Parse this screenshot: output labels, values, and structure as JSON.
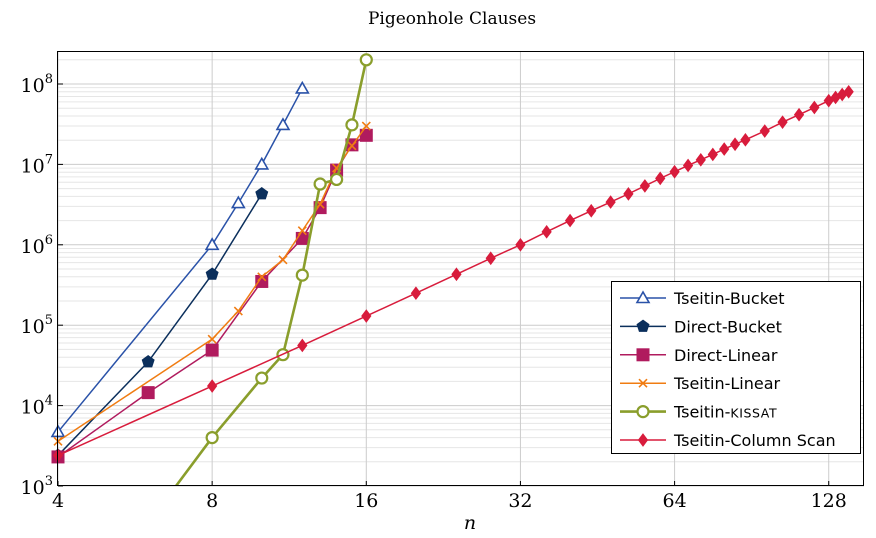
{
  "chart_data": {
    "type": "line",
    "title": "Pigeonhole Clauses",
    "xlabel": "n",
    "ylabel": "",
    "xscale": "log2",
    "yscale": "log10",
    "xlim": [
      4,
      150
    ],
    "ylim": [
      1000,
      250000000
    ],
    "xticks": [
      {
        "value": 4,
        "label": "4"
      },
      {
        "value": 8,
        "label": "8"
      },
      {
        "value": 16,
        "label": "16"
      },
      {
        "value": 32,
        "label": "32"
      },
      {
        "value": 64,
        "label": "64"
      },
      {
        "value": 128,
        "label": "128"
      }
    ],
    "yticks": [
      {
        "value": 1000,
        "base": "10",
        "exp": "3"
      },
      {
        "value": 10000,
        "base": "10",
        "exp": "4"
      },
      {
        "value": 100000,
        "base": "10",
        "exp": "5"
      },
      {
        "value": 1000000,
        "base": "10",
        "exp": "6"
      },
      {
        "value": 10000000,
        "base": "10",
        "exp": "7"
      },
      {
        "value": 100000000,
        "base": "10",
        "exp": "8"
      }
    ],
    "grid": true,
    "legend_position": "bottom-right",
    "series": [
      {
        "name": "Tseitin-Bucket",
        "color": "#2a52a8",
        "marker": "triangle",
        "x": [
          4,
          8,
          9,
          10,
          11,
          12
        ],
        "y": [
          4700,
          1000000,
          3300000,
          10000000,
          31000000,
          88000000
        ]
      },
      {
        "name": "Direct-Bucket",
        "color": "#0b2f5c",
        "marker": "pentagon",
        "x": [
          4,
          6,
          8,
          10
        ],
        "y": [
          2400,
          35000,
          430000,
          4300000
        ]
      },
      {
        "name": "Direct-Linear",
        "color": "#b01b5e",
        "marker": "square",
        "x": [
          4,
          6,
          8,
          10,
          12,
          13,
          14,
          15,
          16
        ],
        "y": [
          2300,
          14500,
          49000,
          350000,
          1200000,
          2900000,
          8500000,
          17500000,
          23000000
        ]
      },
      {
        "name": "Tseitin-Linear",
        "color": "#f07c12",
        "marker": "cross",
        "x": [
          4,
          8,
          9,
          10,
          11,
          12,
          13,
          14,
          15,
          16
        ],
        "y": [
          3600,
          67000,
          150000,
          400000,
          650000,
          1500000,
          3200000,
          9000000,
          17000000,
          30000000
        ]
      },
      {
        "name": "Tseitin-KISSAT",
        "smallcaps_part": "KISSAT",
        "color": "#8a9e2c",
        "marker": "circle",
        "x": [
          6.8,
          8,
          10,
          11,
          12,
          13,
          14,
          15,
          16
        ],
        "y": [
          1000,
          4000,
          22000,
          43000,
          420000,
          5700000,
          6500000,
          31000000,
          200000000
        ]
      },
      {
        "name": "Tseitin-Column Scan",
        "color": "#d81c3c",
        "marker": "diamond",
        "x": [
          4,
          8,
          12,
          16,
          20,
          24,
          28,
          32,
          36,
          40,
          44,
          48,
          52,
          56,
          60,
          64,
          68,
          72,
          76,
          80,
          84,
          88,
          96,
          104,
          112,
          120,
          128,
          132,
          136,
          140
        ],
        "y": [
          2400,
          17500,
          56000,
          130000,
          250000,
          430000,
          680000,
          1000000,
          1450000,
          2000000,
          2650000,
          3400000,
          4300000,
          5400000,
          6700000,
          8100000,
          9700000,
          11400000,
          13300000,
          15500000,
          17800000,
          20200000,
          26000000,
          33500000,
          41500000,
          51000000,
          62000000,
          68000000,
          74000000,
          80000000
        ]
      }
    ]
  }
}
